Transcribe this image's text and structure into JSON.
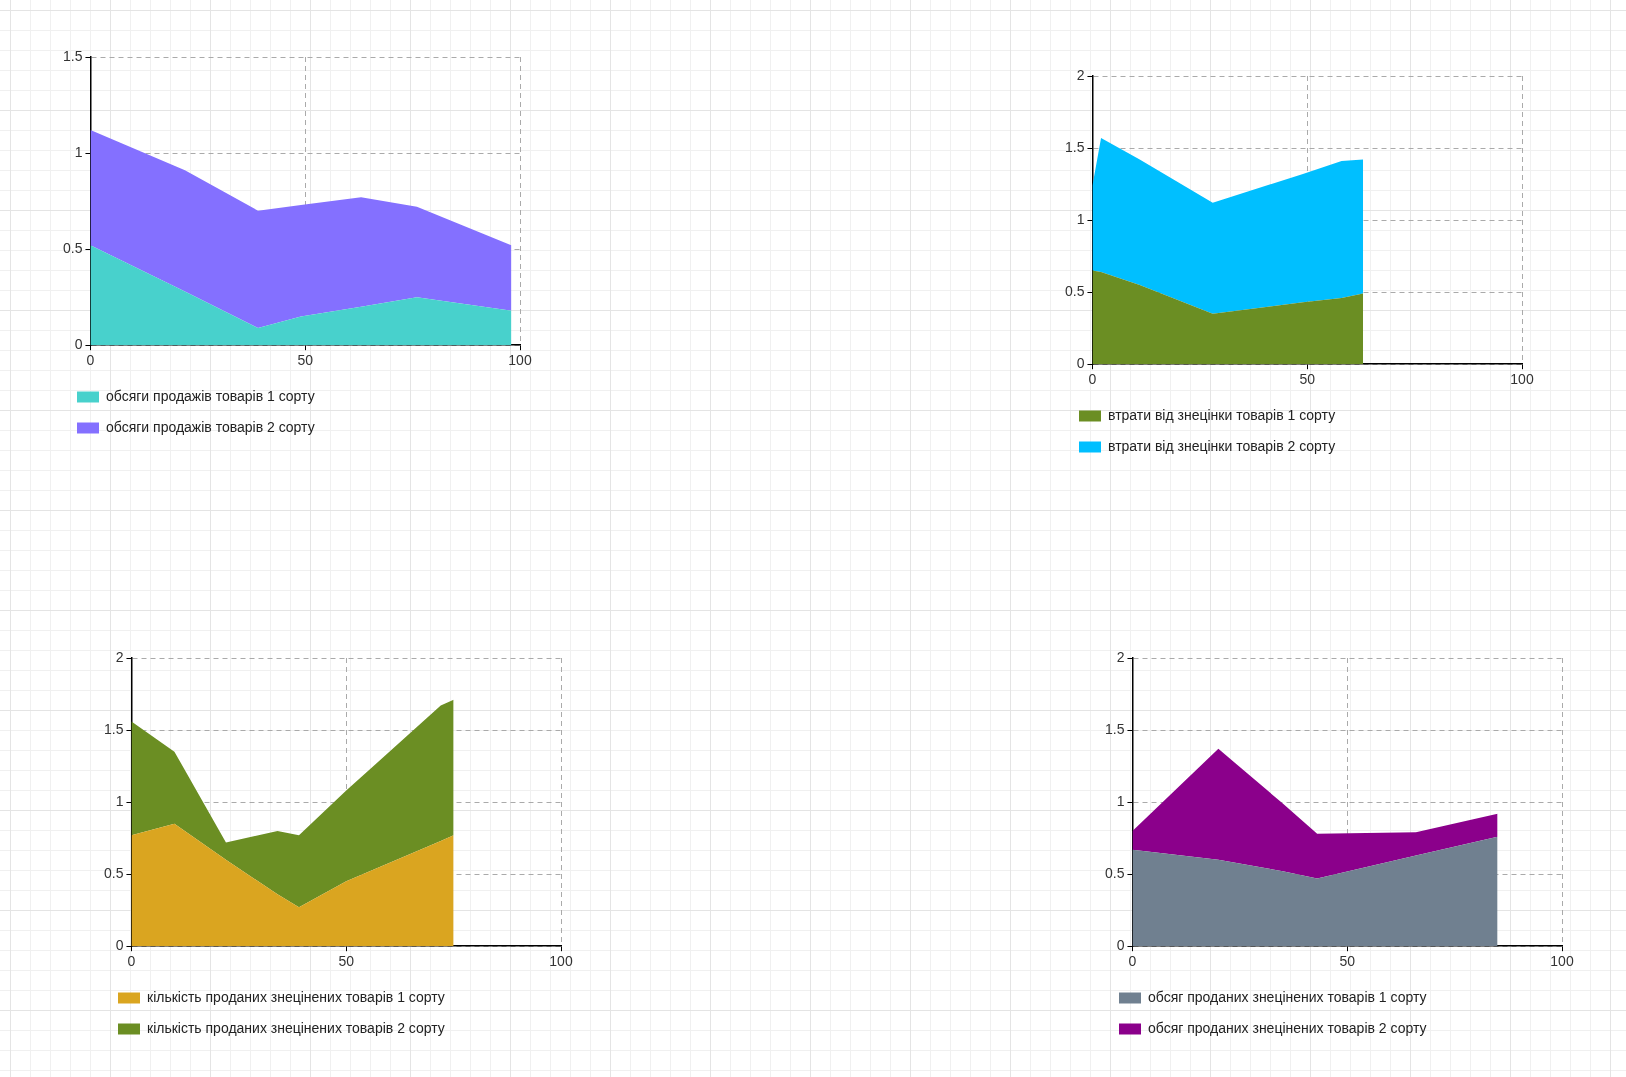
{
  "chart_data": [
    {
      "type": "area",
      "stacked": true,
      "x": [
        0,
        22,
        39,
        49,
        63,
        76,
        98
      ],
      "series": [
        {
          "name": "обсяги продажів товарів 1 сорту",
          "color": "#48d1cc",
          "values": [
            0.52,
            0.28,
            0.09,
            0.15,
            0.2,
            0.25,
            0.18
          ]
        },
        {
          "name": "обсяги продажів товарів 2 сорту",
          "color": "#8470ff",
          "values": [
            0.6,
            0.63,
            0.61,
            0.58,
            0.57,
            0.47,
            0.34
          ]
        }
      ],
      "xlim": [
        0,
        100
      ],
      "xticks": [
        0,
        50,
        100
      ],
      "ylim": [
        0,
        1.5
      ],
      "yticks": [
        0,
        0.5,
        1,
        1.5
      ],
      "grid": true,
      "legend": "bottom"
    },
    {
      "type": "area",
      "stacked": true,
      "x": [
        0,
        2,
        11,
        28,
        49,
        58,
        63
      ],
      "series": [
        {
          "name": "втрати від знецінки товарів 1 сорту",
          "color": "#6b8e23",
          "values": [
            0.65,
            0.64,
            0.55,
            0.35,
            0.43,
            0.46,
            0.49
          ]
        },
        {
          "name": "втрати від знецінки товарів 2 сорту",
          "color": "#00bfff",
          "values": [
            0.59,
            0.93,
            0.87,
            0.77,
            0.89,
            0.95,
            0.93
          ]
        }
      ],
      "xlim": [
        0,
        100
      ],
      "xticks": [
        0,
        50,
        100
      ],
      "ylim": [
        0,
        2
      ],
      "yticks": [
        0,
        0.5,
        1,
        1.5,
        2
      ],
      "grid": true,
      "legend": "bottom"
    },
    {
      "type": "area",
      "stacked": true,
      "x": [
        0,
        10,
        22,
        34,
        39,
        50,
        72,
        75
      ],
      "series": [
        {
          "name": "кількість проданих знецінених товарів 1 сорту",
          "color": "#daa520",
          "values": [
            0.77,
            0.85,
            0.6,
            0.36,
            0.27,
            0.45,
            0.73,
            0.77
          ]
        },
        {
          "name": "кількість проданих знецінених товарів 2 сорту",
          "color": "#6b8e23",
          "values": [
            0.79,
            0.5,
            0.12,
            0.44,
            0.5,
            0.63,
            0.94,
            0.94
          ]
        }
      ],
      "xlim": [
        0,
        100
      ],
      "xticks": [
        0,
        50,
        100
      ],
      "ylim": [
        0,
        2
      ],
      "yticks": [
        0,
        0.5,
        1,
        1.5,
        2
      ],
      "grid": true,
      "legend": "bottom"
    },
    {
      "type": "area",
      "stacked": true,
      "x": [
        0,
        20,
        35,
        43,
        66,
        85
      ],
      "series": [
        {
          "name": "обсяг проданих знецінених товарів 1 сорту",
          "color": "#708090",
          "values": [
            0.67,
            0.6,
            0.52,
            0.47,
            0.63,
            0.76
          ]
        },
        {
          "name": "обсяг проданих знецінених товарів 2 сорту",
          "color": "#8b008b",
          "values": [
            0.13,
            0.77,
            0.47,
            0.31,
            0.16,
            0.16
          ]
        }
      ],
      "xlim": [
        0,
        100
      ],
      "xticks": [
        0,
        50,
        100
      ],
      "ylim": [
        0,
        2
      ],
      "yticks": [
        0,
        0.5,
        1,
        1.5,
        2
      ],
      "grid": true,
      "legend": "bottom"
    }
  ]
}
